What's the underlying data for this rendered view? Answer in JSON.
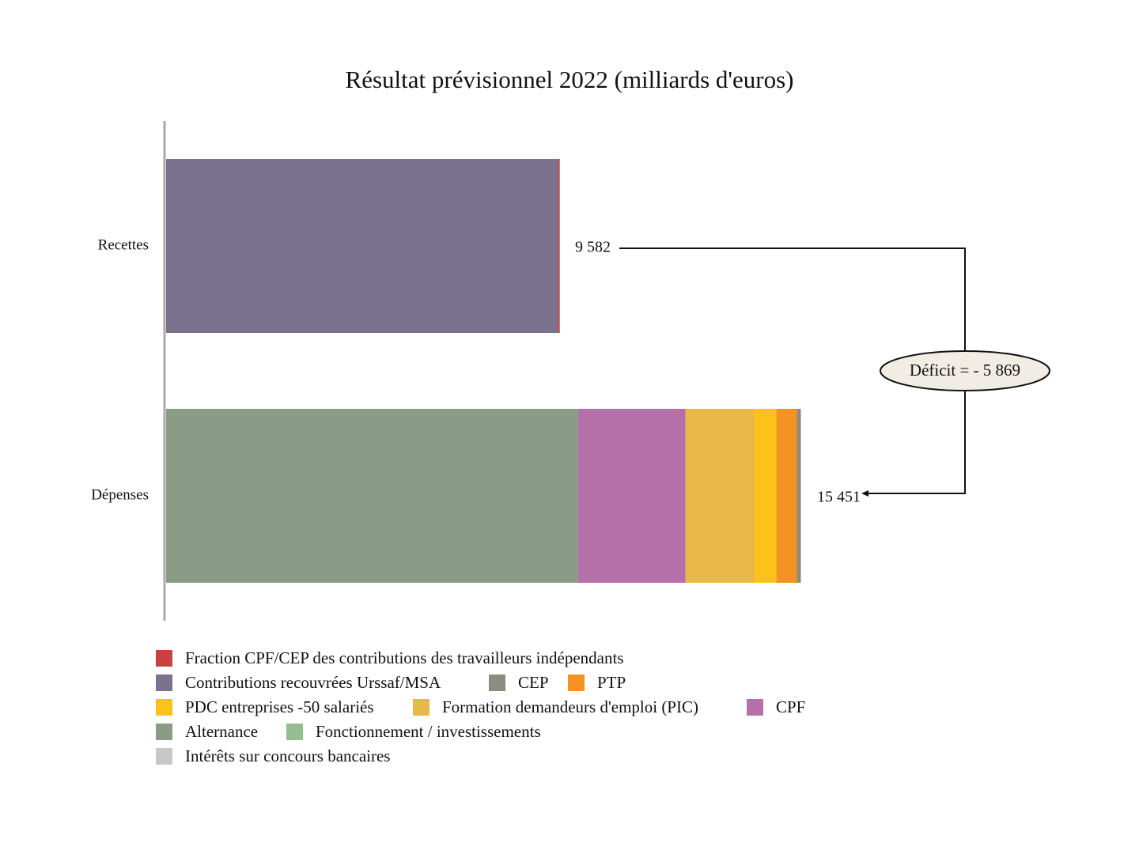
{
  "chart_data": {
    "type": "stacked-barh",
    "title": "Résultat prévisionnel 2022 (milliards d'euros)",
    "categories": [
      "Recettes",
      "Dépenses"
    ],
    "series": [
      {
        "name": "Intérêts sur concours bancaires",
        "color": "#c8c8c8",
        "values": [
          null,
          0
        ]
      },
      {
        "name": "Fonctionnement / investissements",
        "color": "#93bf8e",
        "values": [
          null,
          0
        ]
      },
      {
        "name": "Alternance",
        "color": "#8a9c86",
        "values": [
          null,
          10025
        ]
      },
      {
        "name": "CPF",
        "color": "#b570aa",
        "values": [
          null,
          2617
        ]
      },
      {
        "name": "Formation demandeurs d'emploi (PIC)",
        "color": "#e8b84a",
        "values": [
          null,
          1674
        ]
      },
      {
        "name": "PDC entreprises -50 salariés",
        "color": "#fbc21b",
        "values": [
          null,
          539
        ]
      },
      {
        "name": "PTP",
        "color": "#f39324",
        "values": [
          null,
          500
        ]
      },
      {
        "name": "CEP",
        "color": "#8c8c7e",
        "values": [
          null,
          96
        ]
      },
      {
        "name": "Contributions recouvrées Urssaf/MSA",
        "color": "#7b728f",
        "values": [
          9542,
          null
        ]
      },
      {
        "name": "Fraction CPF/CEP des contributions des travailleurs indépendants",
        "color": "#c94040",
        "values": [
          40,
          null
        ]
      }
    ],
    "total_labels": [
      "9 582",
      "15 451"
    ],
    "annotation": "Déficit = - 5 869",
    "xlim": [
      0,
      16000
    ]
  }
}
